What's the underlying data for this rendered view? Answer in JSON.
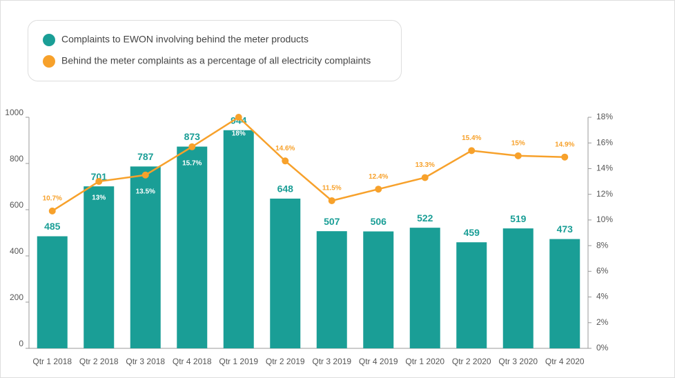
{
  "chart_data": {
    "type": "bar-line",
    "categories": [
      "Qtr 1 2018",
      "Qtr 2 2018",
      "Qtr 3 2018",
      "Qtr 4 2018",
      "Qtr 1 2019",
      "Qtr 2 2019",
      "Qtr 3 2019",
      "Qtr 4 2019",
      "Qtr 1 2020",
      "Qtr 2 2020",
      "Qtr 3 2020",
      "Qtr 4 2020"
    ],
    "series": [
      {
        "name": "Complaints to EWON involving behind the meter products",
        "color": "#1a9e96",
        "type": "bar",
        "values": [
          485,
          701,
          787,
          873,
          944,
          648,
          507,
          506,
          522,
          459,
          519,
          473
        ]
      },
      {
        "name": "Behind the meter complaints as a percentage of all electricity complaints",
        "color": "#f7a12b",
        "type": "line",
        "axis": "y2",
        "values": [
          10.7,
          13,
          13.5,
          15.7,
          18,
          14.6,
          11.5,
          12.4,
          13.3,
          15.4,
          15,
          14.9
        ],
        "value_labels": [
          "10.7%",
          "13%",
          "13.5%",
          "15.7%",
          "18%",
          "14.6%",
          "11.5%",
          "12.4%",
          "13.3%",
          "15.4%",
          "15%",
          "14.9%"
        ]
      }
    ],
    "ylim": [
      0,
      1000
    ],
    "yticks": [
      0,
      200,
      400,
      600,
      800,
      1000
    ],
    "y2lim": [
      0,
      18
    ],
    "y2ticks": [
      {
        "value": 0,
        "label": "0%"
      },
      {
        "value": 2,
        "label": "2%"
      },
      {
        "value": 4,
        "label": "4%"
      },
      {
        "value": 6,
        "label": "6%"
      },
      {
        "value": 8,
        "label": "8%"
      },
      {
        "value": 10,
        "label": "10%"
      },
      {
        "value": 12,
        "label": "12%"
      },
      {
        "value": 14,
        "label": "14%"
      },
      {
        "value": 16,
        "label": "16%"
      },
      {
        "value": 18,
        "label": "18%"
      }
    ],
    "legend": "top-left",
    "grid": false
  }
}
